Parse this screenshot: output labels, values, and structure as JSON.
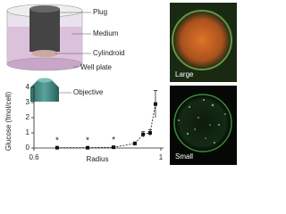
{
  "diagram": {
    "labels": [
      "Plug",
      "Medium",
      "Cylindroid",
      "Well plate",
      "Objective"
    ]
  },
  "images": {
    "labels": [
      "Large",
      "Small"
    ]
  },
  "chart_data": {
    "type": "line",
    "x_label": "Radius",
    "y_label": "Glucose (fmol/cell)",
    "x": [
      0.673,
      0.769,
      0.851,
      0.918,
      0.944,
      0.966,
      0.983
    ],
    "series": [
      {
        "color": "#111111",
        "values": [
          0.02,
          0.02,
          0.05,
          0.3,
          0.9,
          1.0,
          2.9
        ],
        "errors": [
          0.02,
          0.02,
          0.05,
          0.1,
          0.2,
          0.2,
          0.9
        ],
        "value_labels": [
          "*",
          "*",
          "*",
          null,
          null,
          null,
          null
        ]
      }
    ],
    "xlim": [
      0.6,
      1
    ],
    "xticks": [
      0.6,
      1
    ],
    "ylim": [
      0,
      4
    ],
    "yticks": [
      0,
      1,
      2,
      3,
      4
    ]
  }
}
